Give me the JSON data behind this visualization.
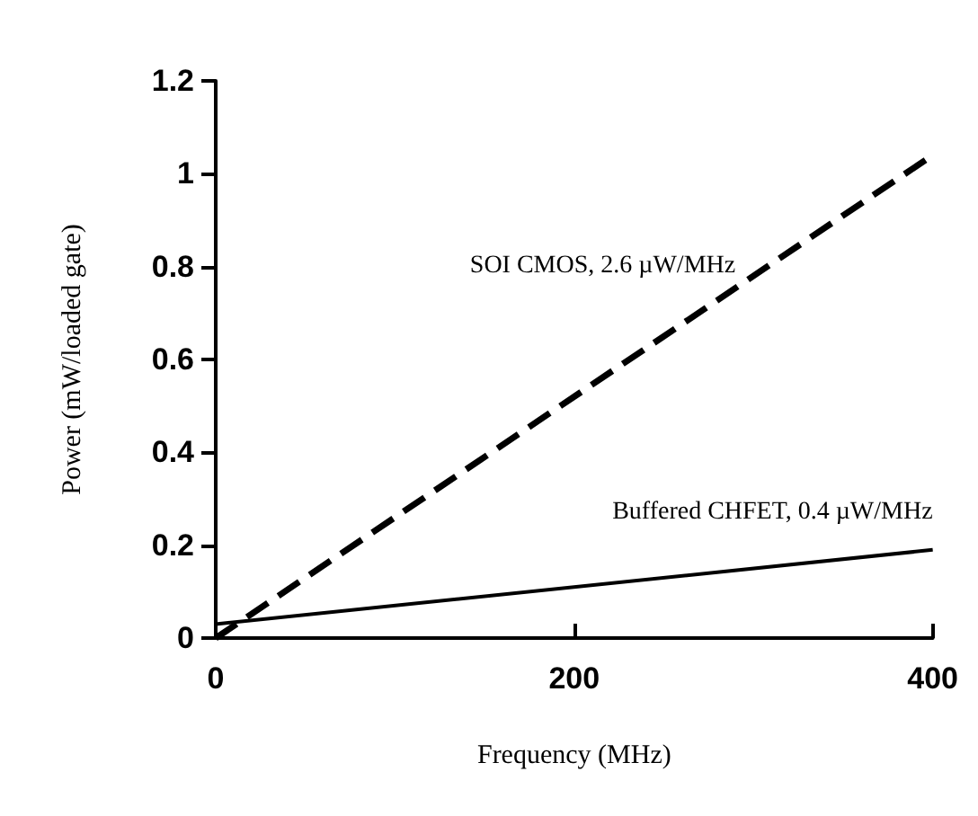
{
  "chart_data": {
    "type": "line",
    "xlabel": "Frequency (MHz)",
    "ylabel": "Power (mW/loaded gate)",
    "x": [
      0,
      400
    ],
    "series": [
      {
        "name": "SOI CMOS, 2.6 µW/MHz",
        "color": "#000000",
        "line_style": "dashed",
        "values": [
          0.0,
          1.04
        ]
      },
      {
        "name": "Buffered CHFET, 0.4 µW/MHz",
        "color": "#000000",
        "line_style": "solid",
        "values": [
          0.03,
          0.19
        ]
      }
    ],
    "xlim": [
      0,
      400
    ],
    "xticks": [
      0,
      200,
      400
    ],
    "ylim": [
      0,
      1.2
    ],
    "yticks": [
      0,
      0.2,
      0.4,
      0.6,
      0.8,
      1,
      1.2
    ],
    "grid": false,
    "legend": false,
    "marker": "none"
  }
}
